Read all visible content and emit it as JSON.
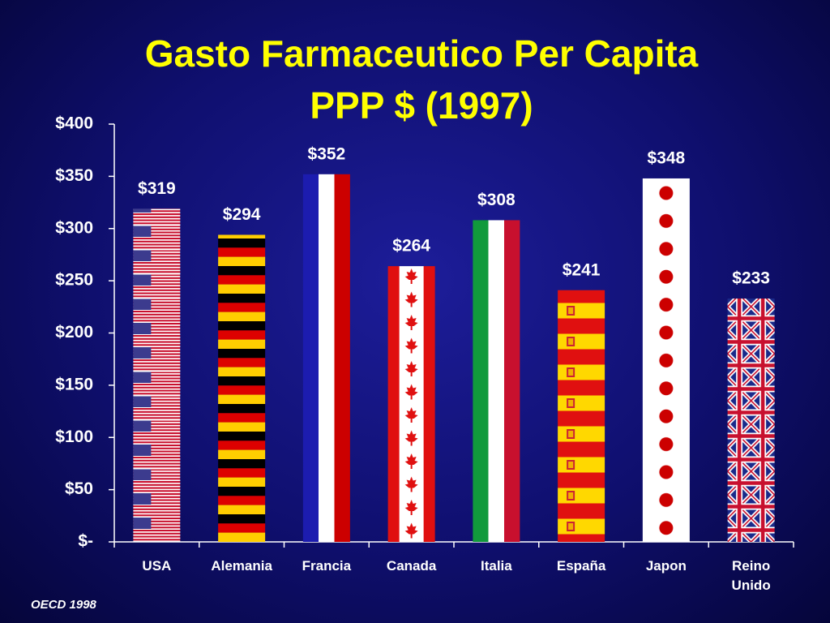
{
  "chart_data": {
    "type": "bar",
    "title": "Gasto Farmaceutico Per Capita",
    "subtitle": "PPP $ (1997)",
    "categories": [
      "USA",
      "Alemania",
      "Francia",
      "Canada",
      "Italia",
      "España",
      "Japon",
      "Reino Unido"
    ],
    "values": [
      319,
      294,
      352,
      264,
      308,
      241,
      348,
      233
    ],
    "value_labels": [
      "$319",
      "$294",
      "$352",
      "$264",
      "$308",
      "$241",
      "$348",
      "$233"
    ],
    "ylim": [
      0,
      400
    ],
    "yticks": [
      {
        "value": 0,
        "label": "$-"
      },
      {
        "value": 50,
        "label": "$50"
      },
      {
        "value": 100,
        "label": "$100"
      },
      {
        "value": 150,
        "label": "$150"
      },
      {
        "value": 200,
        "label": "$200"
      },
      {
        "value": 250,
        "label": "$250"
      },
      {
        "value": 300,
        "label": "$300"
      },
      {
        "value": 350,
        "label": "$350"
      },
      {
        "value": 400,
        "label": "$400"
      }
    ],
    "source": "OECD 1998"
  }
}
